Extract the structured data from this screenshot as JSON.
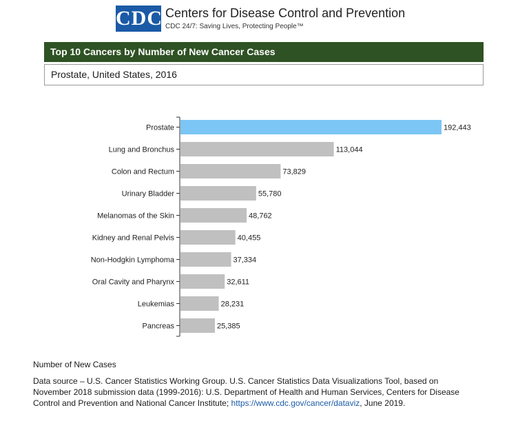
{
  "header": {
    "logo_text": "CDC",
    "org_name": "Centers for Disease Control and Prevention",
    "tagline": "CDC 24/7: Saving Lives, Protecting People™"
  },
  "title": "Top 10 Cancers by Number of New Cancer Cases",
  "subtitle": "Prostate, United States, 2016",
  "colors": {
    "highlight": "#7cc6f5",
    "bar": "#c0c0c0",
    "title_bg": "#2f5224",
    "link": "#1b5aa6"
  },
  "chart_data": {
    "type": "bar",
    "orientation": "horizontal",
    "categories": [
      "Prostate",
      "Lung and Bronchus",
      "Colon and Rectum",
      "Urinary Bladder",
      "Melanomas of the Skin",
      "Kidney and Renal Pelvis",
      "Non-Hodgkin Lymphoma",
      "Oral Cavity and Pharynx",
      "Leukemias",
      "Pancreas"
    ],
    "values": [
      192443,
      113044,
      73829,
      55780,
      48762,
      40455,
      37334,
      32611,
      28231,
      25385
    ],
    "value_labels": [
      "192,443",
      "113,044",
      "73,829",
      "55,780",
      "48,762",
      "40,455",
      "37,334",
      "32,611",
      "28,231",
      "25,385"
    ],
    "highlighted": "Prostate",
    "xlabel": "Number of New Cases",
    "xlim": [
      0,
      192443
    ]
  },
  "source": {
    "text": "Data source – U.S. Cancer Statistics Working Group. U.S. Cancer Statistics Data Visualizations Tool, based on November 2018 submission data (1999-2016): U.S. Department of Health and Human Services, Centers for Disease Control and Prevention and National Cancer Institute;",
    "link_text": "https://www.cdc.gov/cancer/dataviz",
    "suffix": ", June 2019."
  }
}
